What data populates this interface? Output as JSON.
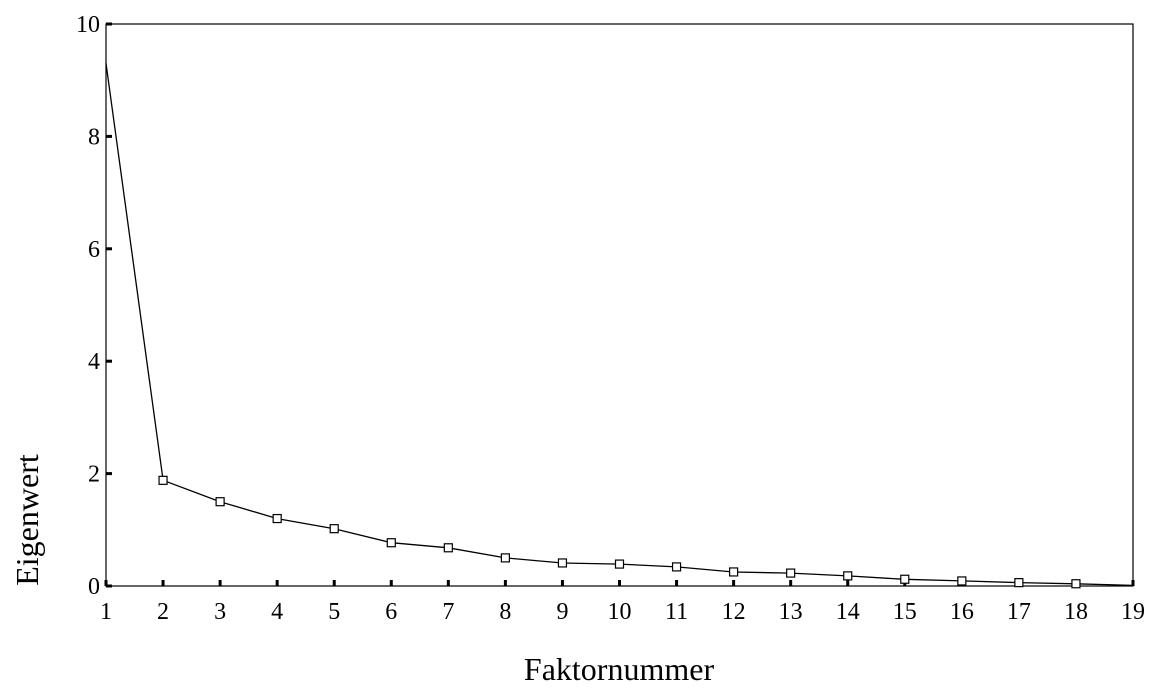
{
  "chart_data": {
    "type": "line",
    "title": "",
    "xlabel": "Faktornummer",
    "ylabel": "Eigenwert",
    "x": [
      1,
      2,
      3,
      4,
      5,
      6,
      7,
      8,
      9,
      10,
      11,
      12,
      13,
      14,
      15,
      16,
      17,
      18,
      19
    ],
    "x_tick_labels": [
      "1",
      "2",
      "3",
      "4",
      "5",
      "6",
      "7",
      "8",
      "9",
      "10",
      "11",
      "12",
      "13",
      "14",
      "15",
      "16",
      "17",
      "18",
      "19"
    ],
    "y_tick_labels": [
      "0",
      "2",
      "4",
      "6",
      "8",
      "10"
    ],
    "xlim": [
      1,
      19
    ],
    "ylim": [
      0,
      10
    ],
    "grid": false,
    "series": [
      {
        "values": [
          9.3,
          1.88,
          1.5,
          1.2,
          1.02,
          0.77,
          0.68,
          0.5,
          0.41,
          0.39,
          0.34,
          0.25,
          0.23,
          0.18,
          0.12,
          0.09,
          0.06,
          0.04,
          0.01
        ],
        "marker": "open-square",
        "color": "#000000"
      }
    ]
  }
}
